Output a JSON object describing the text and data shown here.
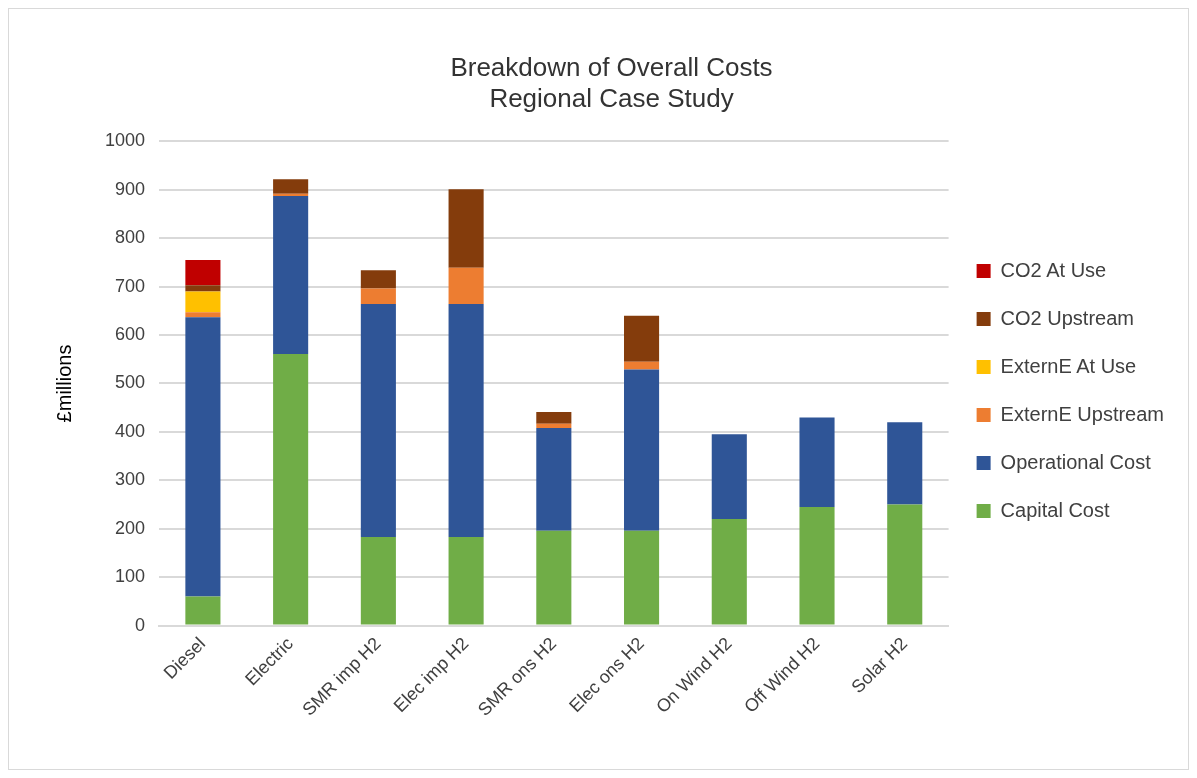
{
  "chart_data": {
    "type": "bar",
    "title": "Breakdown of Overall Costs\nRegional Case Study",
    "ylabel": "£millions",
    "categories": [
      "Diesel",
      "Electric",
      "SMR imp H2",
      "Elec imp H2",
      "SMR ons H2",
      "Elec ons H2",
      "On Wind H2",
      "Off Wind H2",
      "Solar H2"
    ],
    "series": [
      {
        "name": "Capital Cost",
        "color": "#70ad47",
        "values": [
          60,
          561,
          183,
          183,
          196,
          196,
          220,
          245,
          250
        ]
      },
      {
        "name": "Operational Cost",
        "color": "#2f5597",
        "values": [
          577,
          326,
          481,
          481,
          212,
          333,
          175,
          185,
          170
        ]
      },
      {
        "name": "ExternE Upstream",
        "color": "#ed7d31",
        "values": [
          10,
          5,
          32,
          75,
          9,
          16,
          null,
          null,
          null
        ]
      },
      {
        "name": "ExternE At Use",
        "color": "#ffc000",
        "values": [
          43,
          null,
          null,
          null,
          null,
          null,
          null,
          null,
          null
        ]
      },
      {
        "name": "CO2 Upstream",
        "color": "#843c0c",
        "values": [
          13,
          30,
          38,
          162,
          24,
          95,
          null,
          null,
          null
        ]
      },
      {
        "name": "CO2 At Use",
        "color": "#c00000",
        "values": [
          52,
          null,
          null,
          null,
          null,
          null,
          null,
          null,
          null
        ]
      }
    ],
    "stacked": true,
    "ylim": [
      0,
      1000
    ],
    "yticks": [
      0,
      100,
      200,
      300,
      400,
      500,
      600,
      700,
      800,
      900,
      1000
    ],
    "grid": "y",
    "legend": "right"
  }
}
